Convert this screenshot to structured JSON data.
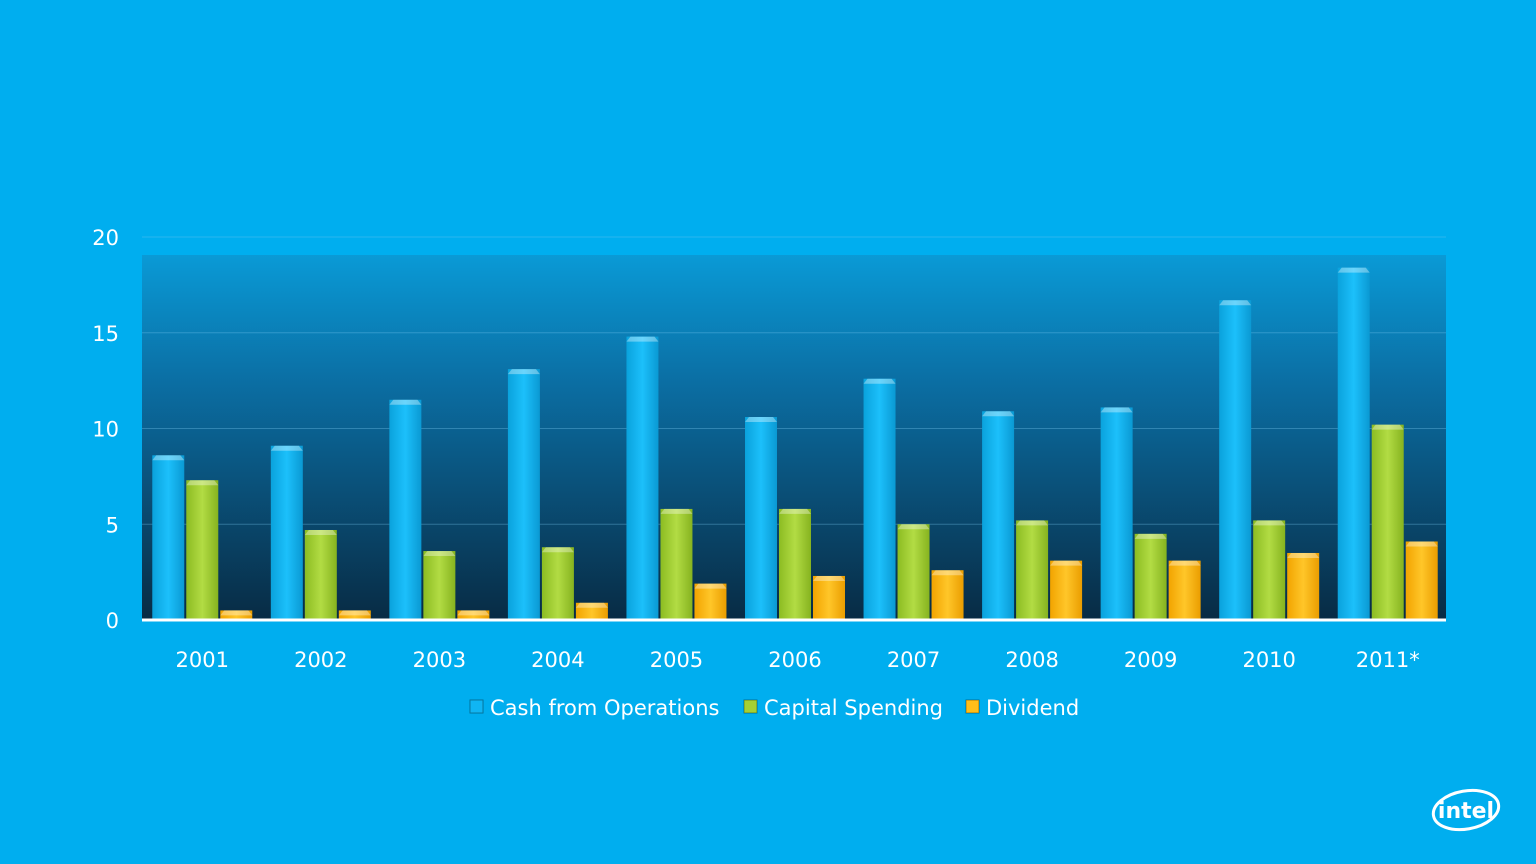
{
  "chart_data": {
    "type": "bar",
    "categories": [
      "2001",
      "2002",
      "2003",
      "2004",
      "2005",
      "2006",
      "2007",
      "2008",
      "2009",
      "2010",
      "2011*"
    ],
    "series": [
      {
        "name": "Cash from Operations",
        "color": "#10b5f3",
        "values": [
          8.6,
          9.1,
          11.5,
          13.1,
          14.8,
          10.6,
          12.6,
          10.9,
          11.1,
          16.7,
          18.4
        ]
      },
      {
        "name": "Capital Spending",
        "color": "#a4d034",
        "values": [
          7.3,
          4.7,
          3.6,
          3.8,
          5.8,
          5.8,
          5.0,
          5.2,
          4.5,
          5.2,
          10.2
        ]
      },
      {
        "name": "Dividend",
        "color": "#ffbe1a",
        "values": [
          0.5,
          0.5,
          0.5,
          0.9,
          1.9,
          2.3,
          2.6,
          3.1,
          3.1,
          3.5,
          4.1
        ]
      }
    ],
    "yticks": [
      "0",
      "5",
      "10",
      "15",
      "20"
    ],
    "ylim": [
      0,
      20
    ],
    "grid": true,
    "legend": "bottom-center"
  },
  "logo": {
    "text": "intel"
  },
  "colors": {
    "background": "#00aeef",
    "plot_top": "#1b7fbd",
    "plot_bottom": "#0a2f4a"
  }
}
